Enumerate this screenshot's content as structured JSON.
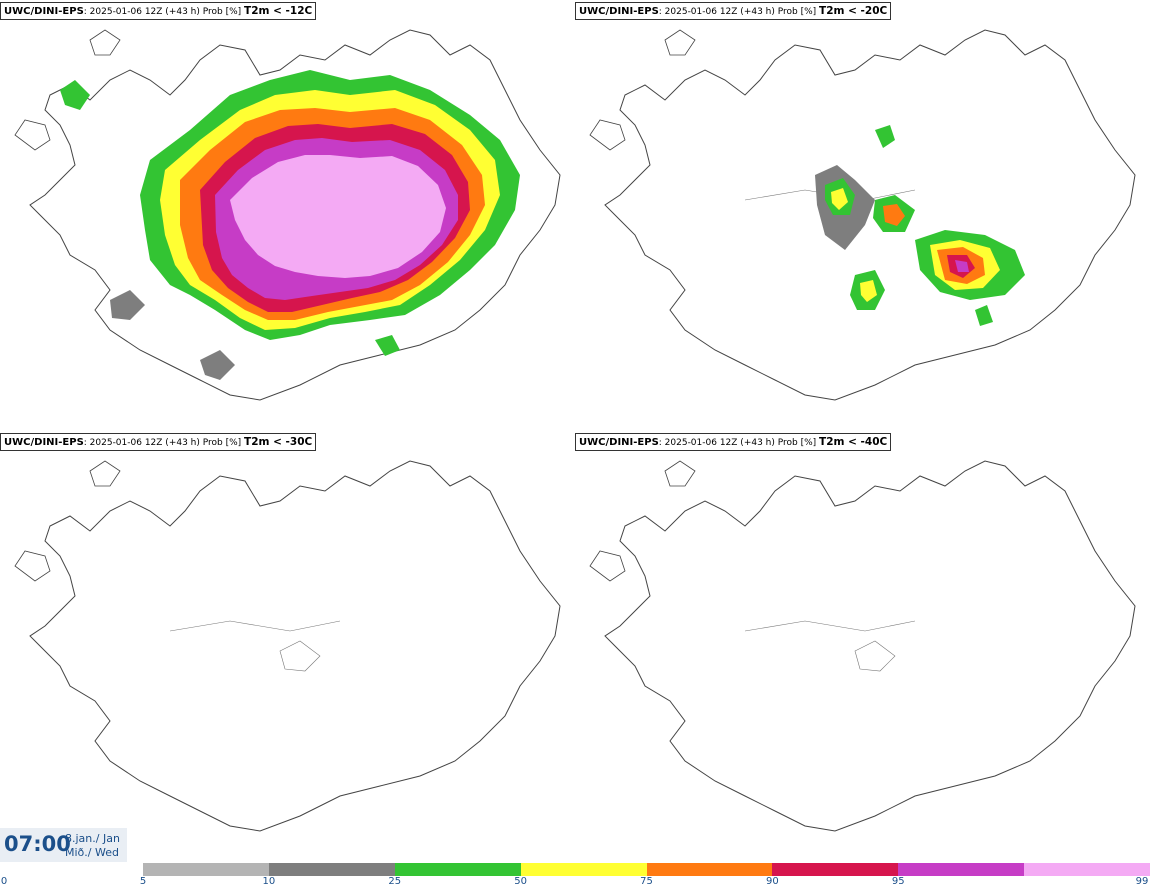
{
  "panels": [
    {
      "source": "UWC/DINI-EPS",
      "run": ": 2025-01-06 12Z (+43 h) Prob [%] ",
      "threshold": "T2m < -12C"
    },
    {
      "source": "UWC/DINI-EPS",
      "run": ": 2025-01-06 12Z (+43 h) Prob [%] ",
      "threshold": "T2m < -20C"
    },
    {
      "source": "UWC/DINI-EPS",
      "run": ": 2025-01-06 12Z (+43 h) Prob [%] ",
      "threshold": "T2m < -30C"
    },
    {
      "source": "UWC/DINI-EPS",
      "run": ": 2025-01-06 12Z (+43 h) Prob [%] ",
      "threshold": "T2m < -40C"
    }
  ],
  "time": {
    "clock": "07:00",
    "date_line": "8.jan./ Jan",
    "day_line": "Mið./ Wed"
  },
  "legend": {
    "labels": [
      "0",
      "5",
      "10",
      "25",
      "50",
      "75",
      "90",
      "95",
      "99"
    ],
    "colors": [
      "#b4b4b4",
      "#7e7e7e",
      "#33c433",
      "#ffff33",
      "#ff7a11",
      "#d6154d",
      "#c63cc6",
      "#f4aaf4"
    ]
  }
}
